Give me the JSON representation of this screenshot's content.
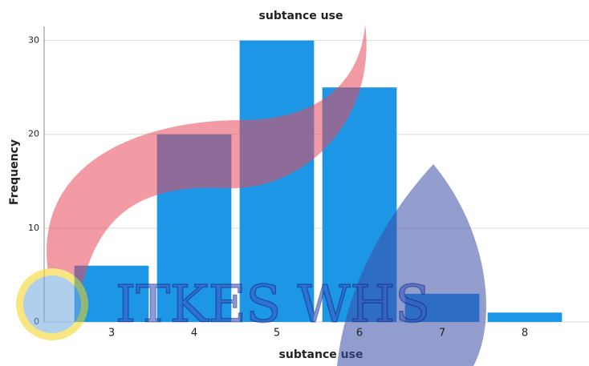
{
  "chart_data": {
    "type": "bar",
    "title": "subtance use",
    "x_label": "subtance use",
    "y_label": "Frequency",
    "categories": [
      "3",
      "4",
      "5",
      "6",
      "7",
      "8"
    ],
    "values": [
      6,
      20,
      30,
      25,
      3,
      1
    ],
    "color": "#1e96e6",
    "ylim": [
      0,
      31.5
    ],
    "yticks": [
      0,
      10,
      20,
      30
    ],
    "grid": true
  },
  "watermark": "ITKES WHS"
}
